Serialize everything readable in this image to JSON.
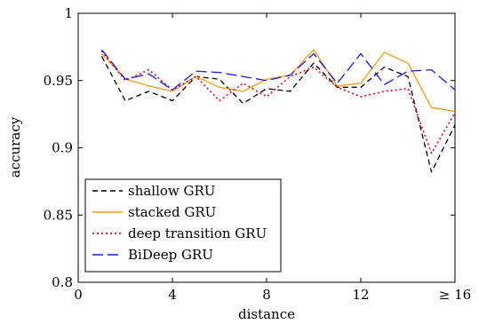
{
  "chart_data": {
    "type": "line",
    "xlabel": "distance",
    "ylabel": "accuracy",
    "xlim": [
      0,
      16
    ],
    "ylim": [
      0.8,
      1.0
    ],
    "x_ticks": [
      {
        "value": 0,
        "label": "0"
      },
      {
        "value": 4,
        "label": "4"
      },
      {
        "value": 8,
        "label": "8"
      },
      {
        "value": 12,
        "label": "12"
      },
      {
        "value": 16,
        "label": "≥ 16"
      }
    ],
    "y_ticks": [
      {
        "value": 0.8,
        "label": "0.8"
      },
      {
        "value": 0.85,
        "label": "0.85"
      },
      {
        "value": 0.9,
        "label": "0.9"
      },
      {
        "value": 0.95,
        "label": "0.95"
      },
      {
        "value": 1.0,
        "label": "1"
      }
    ],
    "grid": false,
    "legend_position": "bottom-left",
    "x": [
      1,
      2,
      3,
      4,
      5,
      6,
      7,
      8,
      9,
      10,
      11,
      12,
      13,
      14,
      15,
      16
    ],
    "series": [
      {
        "name": "shallow GRU",
        "color": "#000000",
        "dash": "dashed",
        "values": [
          0.968,
          0.935,
          0.942,
          0.935,
          0.953,
          0.951,
          0.933,
          0.944,
          0.942,
          0.963,
          0.945,
          0.945,
          0.96,
          0.953,
          0.882,
          0.917
        ]
      },
      {
        "name": "stacked GRU",
        "color": "#f39c12",
        "dash": "solid",
        "values": [
          0.97,
          0.951,
          0.946,
          0.942,
          0.953,
          0.945,
          0.942,
          0.951,
          0.954,
          0.973,
          0.946,
          0.948,
          0.971,
          0.963,
          0.93,
          0.927
        ]
      },
      {
        "name": "deep transition GRU",
        "color": "#e8001c",
        "dash": "dotted",
        "values": [
          0.972,
          0.95,
          0.958,
          0.943,
          0.953,
          0.935,
          0.948,
          0.938,
          0.953,
          0.96,
          0.945,
          0.938,
          0.942,
          0.944,
          0.896,
          0.926
        ]
      },
      {
        "name": "BiDeep GRU",
        "color": "#1a1aff",
        "dash": "longdash",
        "values": [
          0.973,
          0.951,
          0.955,
          0.943,
          0.957,
          0.956,
          0.953,
          0.95,
          0.954,
          0.97,
          0.948,
          0.97,
          0.947,
          0.957,
          0.958,
          0.943
        ]
      }
    ]
  }
}
